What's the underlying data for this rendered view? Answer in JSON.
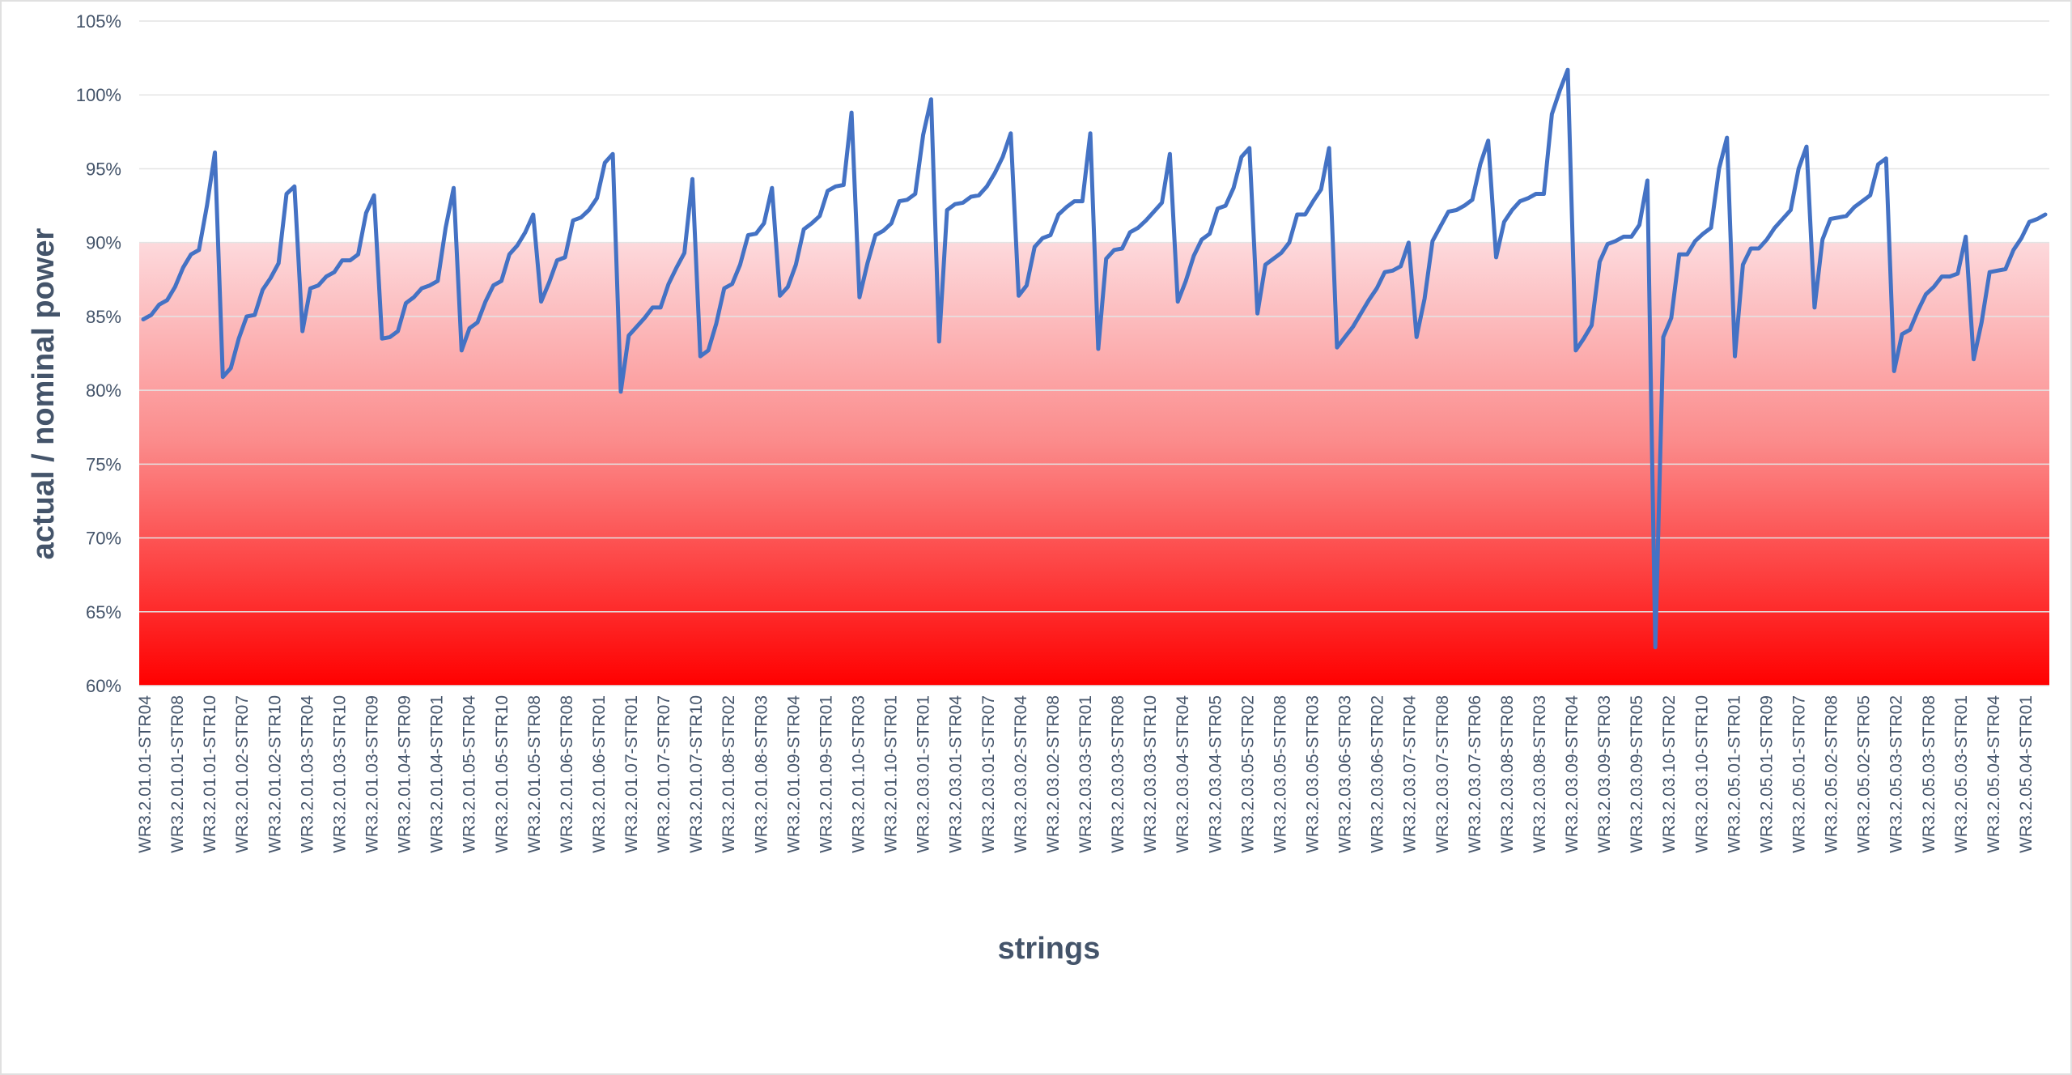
{
  "chart_data": {
    "type": "line",
    "xlabel": "strings",
    "ylabel": "actual / nominal power",
    "ylim": [
      60,
      105
    ],
    "y_ticks": [
      "60%",
      "65%",
      "70%",
      "75%",
      "80%",
      "85%",
      "90%",
      "95%",
      "100%",
      "105%"
    ],
    "y_tick_values": [
      60,
      65,
      70,
      75,
      80,
      85,
      90,
      95,
      100,
      105
    ],
    "x_tick_labels": [
      "WR3.2.01.01-STR04",
      "WR3.2.01.01-STR08",
      "WR3.2.01.01-STR10",
      "WR3.2.01.02-STR07",
      "WR3.2.01.02-STR10",
      "WR3.2.01.03-STR04",
      "WR3.2.01.03-STR10",
      "WR3.2.01.03-STR09",
      "WR3.2.01.04-STR09",
      "WR3.2.01.04-STR01",
      "WR3.2.01.05-STR04",
      "WR3.2.01.05-STR10",
      "WR3.2.01.05-STR08",
      "WR3.2.01.06-STR08",
      "WR3.2.01.06-STR01",
      "WR3.2.01.07-STR01",
      "WR3.2.01.07-STR07",
      "WR3.2.01.07-STR10",
      "WR3.2.01.08-STR02",
      "WR3.2.01.08-STR03",
      "WR3.2.01.09-STR04",
      "WR3.2.01.09-STR01",
      "WR3.2.01.10-STR03",
      "WR3.2.01.10-STR01",
      "WR3.2.03.01-STR01",
      "WR3.2.03.01-STR04",
      "WR3.2.03.01-STR07",
      "WR3.2.03.02-STR04",
      "WR3.2.03.02-STR08",
      "WR3.2.03.03-STR01",
      "WR3.2.03.03-STR08",
      "WR3.2.03.03-STR10",
      "WR3.2.03.04-STR04",
      "WR3.2.03.04-STR05",
      "WR3.2.03.05-STR02",
      "WR3.2.03.05-STR08",
      "WR3.2.03.05-STR03",
      "WR3.2.03.06-STR03",
      "WR3.2.03.06-STR02",
      "WR3.2.03.07-STR04",
      "WR3.2.03.07-STR08",
      "WR3.2.03.07-STR06",
      "WR3.2.03.08-STR08",
      "WR3.2.03.08-STR03",
      "WR3.2.03.09-STR04",
      "WR3.2.03.09-STR03",
      "WR3.2.03.09-STR05",
      "WR3.2.03.10-STR02",
      "WR3.2.03.10-STR10",
      "WR3.2.05.01-STR01",
      "WR3.2.05.01-STR09",
      "WR3.2.05.01-STR07",
      "WR3.2.05.02-STR08",
      "WR3.2.05.02-STR05",
      "WR3.2.05.03-STR02",
      "WR3.2.05.03-STR08",
      "WR3.2.05.03-STR01",
      "WR3.2.05.04-STR04",
      "WR3.2.05.04-STR01"
    ],
    "series": [
      {
        "color": "#4472c4",
        "values": [
          84.8,
          85.1,
          85.8,
          86.1,
          87.0,
          88.3,
          89.2,
          89.5,
          92.5,
          96.1,
          80.9,
          81.5,
          83.5,
          85.0,
          85.1,
          86.8,
          87.6,
          88.6,
          93.3,
          93.8,
          84.0,
          86.9,
          87.1,
          87.7,
          88.0,
          88.8,
          88.8,
          89.2,
          92.0,
          93.2,
          83.5,
          83.6,
          84.0,
          85.9,
          86.3,
          86.9,
          87.1,
          87.4,
          91.0,
          93.7,
          82.7,
          84.2,
          84.6,
          86.0,
          87.1,
          87.4,
          89.2,
          89.8,
          90.7,
          91.9,
          86.0,
          87.3,
          88.8,
          89.0,
          91.5,
          91.7,
          92.2,
          93.0,
          95.4,
          96.0,
          79.9,
          83.7,
          84.3,
          84.9,
          85.6,
          85.6,
          87.2,
          88.3,
          89.3,
          94.3,
          82.3,
          82.7,
          84.5,
          86.9,
          87.2,
          88.5,
          90.5,
          90.6,
          91.3,
          93.7,
          86.4,
          87.0,
          88.5,
          90.9,
          91.3,
          91.8,
          93.5,
          93.8,
          93.9,
          98.8,
          86.3,
          88.6,
          90.5,
          90.8,
          91.3,
          92.8,
          92.9,
          93.3,
          97.3,
          99.7,
          83.3,
          92.2,
          92.6,
          92.7,
          93.1,
          93.2,
          93.8,
          94.7,
          95.8,
          97.4,
          86.4,
          87.1,
          89.7,
          90.3,
          90.5,
          91.9,
          92.4,
          92.8,
          92.8,
          97.4,
          82.8,
          88.9,
          89.5,
          89.6,
          90.7,
          91.0,
          91.5,
          92.1,
          92.7,
          96.0,
          86.0,
          87.4,
          89.1,
          90.2,
          90.6,
          92.3,
          92.5,
          93.7,
          95.8,
          96.4,
          85.2,
          88.5,
          88.9,
          89.3,
          90.0,
          91.9,
          91.9,
          92.8,
          93.6,
          96.4,
          82.9,
          83.6,
          84.3,
          85.2,
          86.1,
          86.9,
          88.0,
          88.1,
          88.4,
          90.0,
          83.6,
          86.2,
          90.1,
          91.1,
          92.1,
          92.2,
          92.5,
          92.9,
          95.3,
          96.9,
          89.0,
          91.4,
          92.2,
          92.8,
          93.0,
          93.3,
          93.3,
          98.7,
          100.3,
          101.7,
          82.7,
          83.5,
          84.4,
          88.7,
          89.9,
          90.1,
          90.4,
          90.4,
          91.2,
          94.2,
          62.6,
          83.6,
          84.9,
          89.2,
          89.2,
          90.1,
          90.6,
          91.0,
          95.0,
          97.1,
          82.3,
          88.5,
          89.6,
          89.6,
          90.2,
          91.0,
          91.6,
          92.2,
          95.0,
          96.5,
          85.6,
          90.2,
          91.6,
          91.7,
          91.8,
          92.4,
          92.8,
          93.2,
          95.3,
          95.7,
          81.3,
          83.8,
          84.1,
          85.4,
          86.5,
          87.0,
          87.7,
          87.7,
          87.9,
          90.4,
          82.1,
          84.6,
          88.0,
          88.1,
          88.2,
          89.5,
          90.3,
          91.4,
          91.6,
          91.9
        ]
      }
    ],
    "fill_band": {
      "from": 60,
      "to": 90,
      "top_color": "#fdd9dc",
      "bottom_color": "#ff0000"
    }
  }
}
